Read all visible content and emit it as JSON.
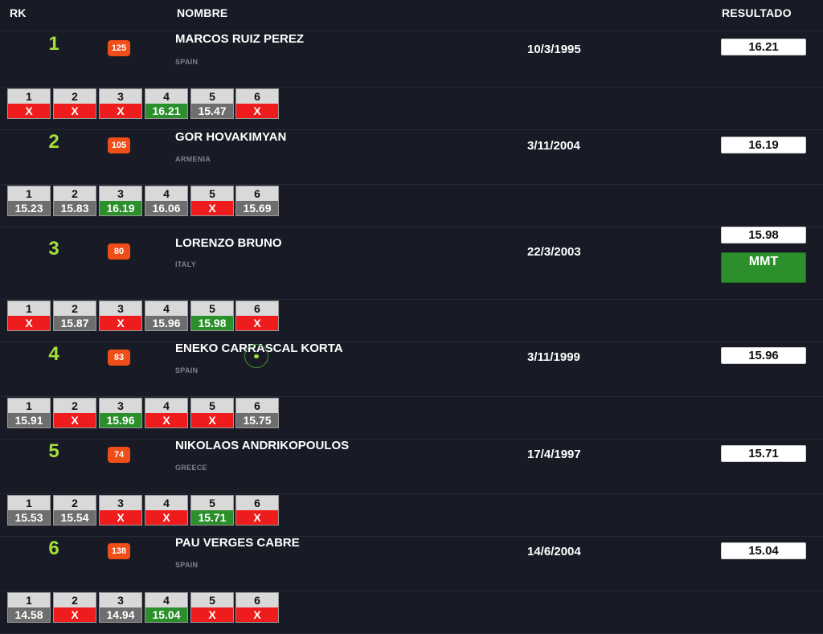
{
  "header": {
    "rank": "RK",
    "name": "NOMBRE",
    "result": "RESULTADO"
  },
  "colors": {
    "accent_rank": "#a4e03a",
    "bib": "#f04e18",
    "best": "#2b8f2b",
    "foul": "#ee1c1c",
    "mark": "#6e6e6e",
    "background": "#181b26"
  },
  "athletes": [
    {
      "rank": "1",
      "bib": "125",
      "name": "MARCOS RUIZ PEREZ",
      "country": "SPAIN",
      "dob": "10/3/1995",
      "result": "16.21",
      "attempts": [
        {
          "n": "1",
          "v": "X",
          "t": "x"
        },
        {
          "n": "2",
          "v": "X",
          "t": "x"
        },
        {
          "n": "3",
          "v": "X",
          "t": "x"
        },
        {
          "n": "4",
          "v": "16.21",
          "t": "best"
        },
        {
          "n": "5",
          "v": "15.47",
          "t": "mark"
        },
        {
          "n": "6",
          "v": "X",
          "t": "x"
        }
      ]
    },
    {
      "rank": "2",
      "bib": "105",
      "name": "GOR HOVAKIMYAN",
      "country": "ARMENIA",
      "dob": "3/11/2004",
      "result": "16.19",
      "attempts": [
        {
          "n": "1",
          "v": "15.23",
          "t": "mark"
        },
        {
          "n": "2",
          "v": "15.83",
          "t": "mark"
        },
        {
          "n": "3",
          "v": "16.19",
          "t": "best"
        },
        {
          "n": "4",
          "v": "16.06",
          "t": "mark"
        },
        {
          "n": "5",
          "v": "X",
          "t": "x"
        },
        {
          "n": "6",
          "v": "15.69",
          "t": "mark"
        }
      ]
    },
    {
      "rank": "3",
      "bib": "80",
      "name": "LORENZO BRUNO",
      "country": "ITALY",
      "dob": "22/3/2003",
      "result": "15.98",
      "badge": "MMT",
      "attempts": [
        {
          "n": "1",
          "v": "X",
          "t": "x"
        },
        {
          "n": "2",
          "v": "15.87",
          "t": "mark"
        },
        {
          "n": "3",
          "v": "X",
          "t": "x"
        },
        {
          "n": "4",
          "v": "15.96",
          "t": "mark"
        },
        {
          "n": "5",
          "v": "15.98",
          "t": "best"
        },
        {
          "n": "6",
          "v": "X",
          "t": "x"
        }
      ]
    },
    {
      "rank": "4",
      "bib": "83",
      "name": "ENEKO CARRASCAL KORTA",
      "country": "SPAIN",
      "dob": "3/11/1999",
      "result": "15.96",
      "attempts": [
        {
          "n": "1",
          "v": "15.91",
          "t": "mark"
        },
        {
          "n": "2",
          "v": "X",
          "t": "x"
        },
        {
          "n": "3",
          "v": "15.96",
          "t": "best"
        },
        {
          "n": "4",
          "v": "X",
          "t": "x"
        },
        {
          "n": "5",
          "v": "X",
          "t": "x"
        },
        {
          "n": "6",
          "v": "15.75",
          "t": "mark"
        }
      ]
    },
    {
      "rank": "5",
      "bib": "74",
      "name": "NIKOLAOS ANDRIKOPOULOS",
      "country": "GREECE",
      "dob": "17/4/1997",
      "result": "15.71",
      "attempts": [
        {
          "n": "1",
          "v": "15.53",
          "t": "mark"
        },
        {
          "n": "2",
          "v": "15.54",
          "t": "mark"
        },
        {
          "n": "3",
          "v": "X",
          "t": "x"
        },
        {
          "n": "4",
          "v": "X",
          "t": "x"
        },
        {
          "n": "5",
          "v": "15.71",
          "t": "best"
        },
        {
          "n": "6",
          "v": "X",
          "t": "x"
        }
      ]
    },
    {
      "rank": "6",
      "bib": "138",
      "name": "PAU VERGES CABRE",
      "country": "SPAIN",
      "dob": "14/6/2004",
      "result": "15.04",
      "attempts": [
        {
          "n": "1",
          "v": "14.58",
          "t": "mark"
        },
        {
          "n": "2",
          "v": "X",
          "t": "x"
        },
        {
          "n": "3",
          "v": "14.94",
          "t": "mark"
        },
        {
          "n": "4",
          "v": "15.04",
          "t": "best"
        },
        {
          "n": "5",
          "v": "X",
          "t": "x"
        },
        {
          "n": "6",
          "v": "X",
          "t": "x"
        }
      ]
    }
  ]
}
